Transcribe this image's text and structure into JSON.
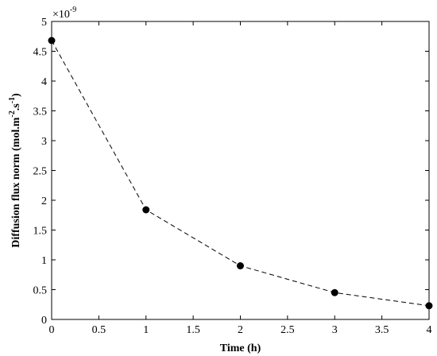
{
  "chart_data": {
    "type": "line",
    "xlabel": "Time (h)",
    "ylabel": {
      "base": "Diffusion flux norm (mol.m",
      "sup1": "-2",
      "mid": ".s",
      "sup2": "-1",
      "end": ")"
    },
    "y_multiplier": {
      "prefix": "×10",
      "exponent": "-9"
    },
    "xlim": [
      0,
      4
    ],
    "ylim": [
      0,
      5
    ],
    "xticks": [
      "0",
      "0.5",
      "1",
      "1.5",
      "2",
      "2.5",
      "3",
      "3.5",
      "4"
    ],
    "yticks": [
      "0",
      "0.5",
      "1",
      "1.5",
      "2",
      "2.5",
      "3",
      "3.5",
      "4",
      "4.5",
      "5"
    ],
    "grid": false,
    "series": [
      {
        "x": [
          0,
          1,
          2,
          3,
          4
        ],
        "y": [
          4.68,
          1.84,
          0.9,
          0.45,
          0.23
        ],
        "line_style": "dashed",
        "marker": "filled-circle",
        "color": "#000000"
      }
    ]
  }
}
